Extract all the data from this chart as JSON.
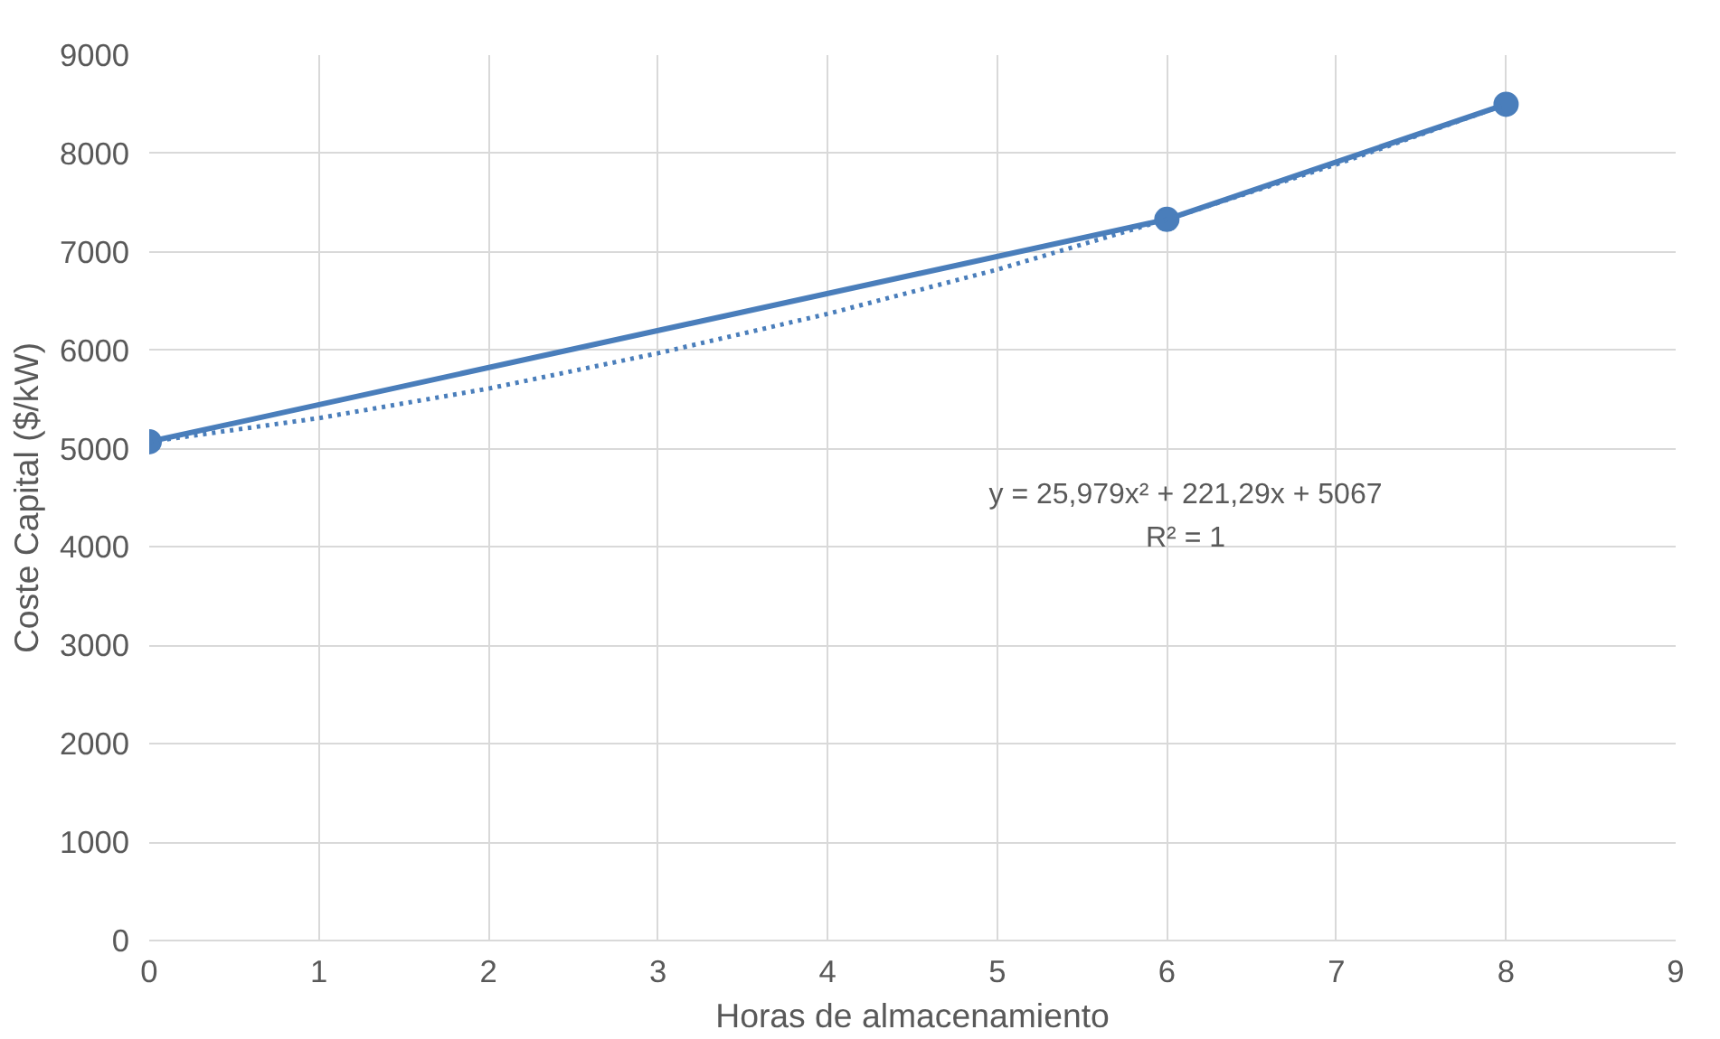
{
  "chart_data": {
    "type": "line",
    "xlabel": "Horas de almacenamiento",
    "ylabel": "Coste Capital ($/kW)",
    "x": [
      0,
      6,
      8
    ],
    "series": [
      {
        "color": "#4a7ebb",
        "values": [
          5070,
          7330,
          8500
        ],
        "marker": "circle",
        "line_style": "solid"
      },
      {
        "type": "line",
        "color": "#4a7ebb",
        "x": [
          0,
          1,
          2,
          3,
          4,
          5,
          6,
          7,
          8
        ],
        "values": [
          5070,
          5310,
          5610,
          5970,
          6370,
          6820,
          7330,
          7890,
          8500
        ],
        "marker": "none",
        "line_style": "dotted"
      }
    ],
    "annotations": [
      "y = 25,979x² + 221,29x + 5067",
      "R² = 1"
    ],
    "xlim": [
      0,
      9
    ],
    "xticks": [
      0,
      1,
      2,
      3,
      4,
      5,
      6,
      7,
      8,
      9
    ],
    "ylim": [
      0,
      9000
    ],
    "yticks": [
      0,
      1000,
      2000,
      3000,
      4000,
      5000,
      6000,
      7000,
      8000,
      9000
    ],
    "grid": true
  }
}
